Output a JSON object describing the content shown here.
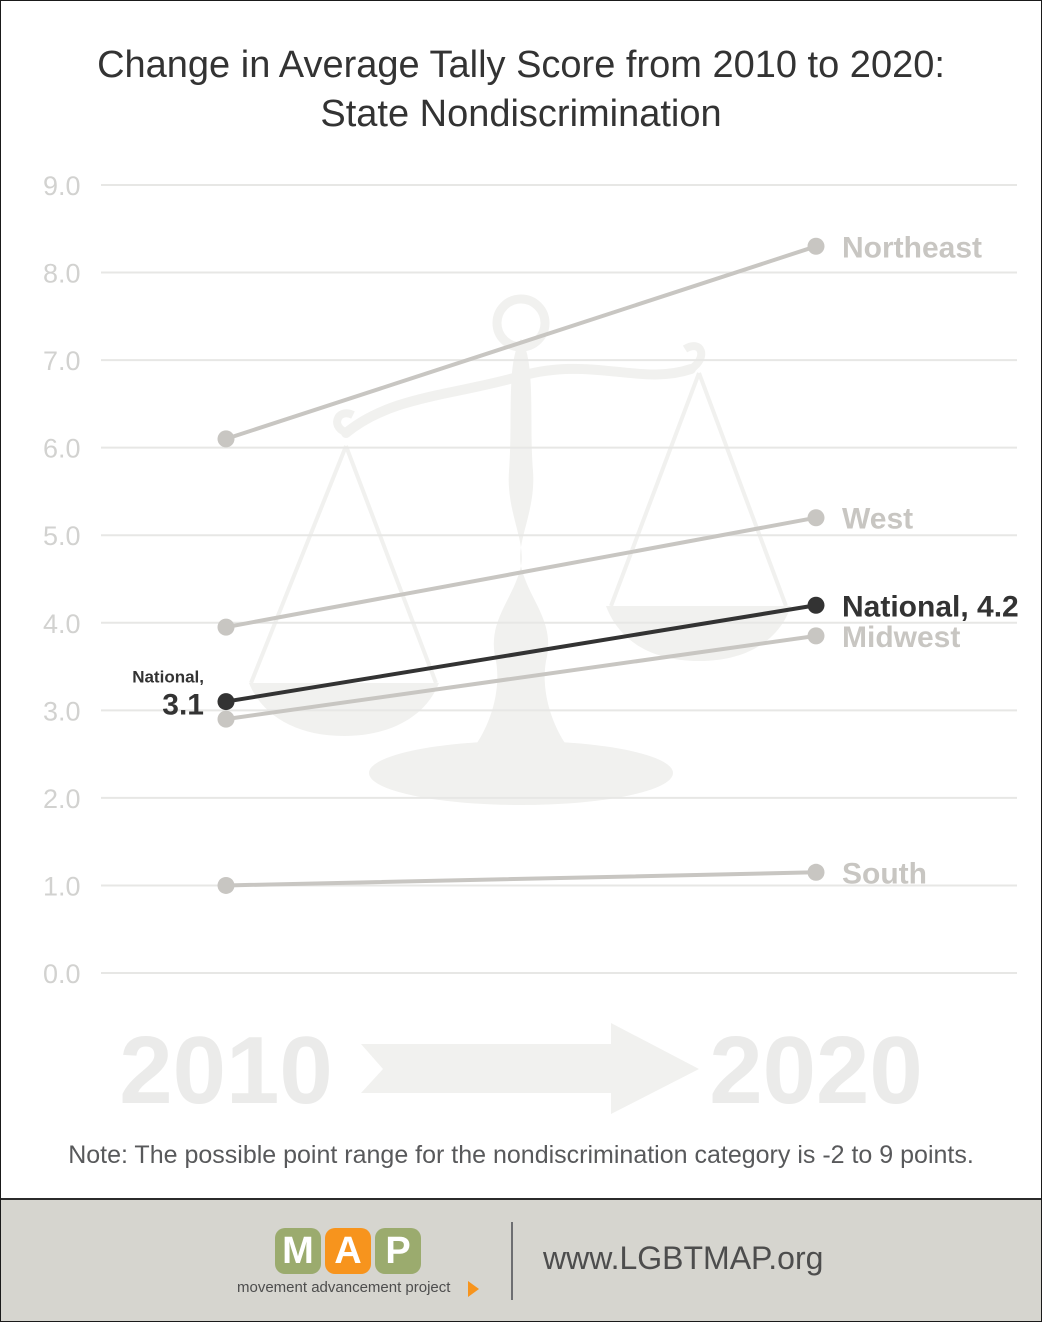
{
  "chart_data": {
    "type": "line",
    "title": [
      "Change in Average Tally Score from 2010 to 2020:",
      "State Nondiscrimination"
    ],
    "x": [
      "2010",
      "2020"
    ],
    "yticks": [
      "9.0",
      "8.0",
      "7.0",
      "6.0",
      "5.0",
      "4.0",
      "3.0",
      "2.0",
      "1.0",
      "0.0"
    ],
    "ylim": [
      0,
      9
    ],
    "grid": true,
    "series": [
      {
        "name": "Northeast",
        "values": [
          6.1,
          8.3
        ],
        "color": "#c8c6c2",
        "label": "Northeast"
      },
      {
        "name": "West",
        "values": [
          3.95,
          5.2
        ],
        "color": "#c8c6c2",
        "label": "West"
      },
      {
        "name": "Midwest",
        "values": [
          2.9,
          3.85
        ],
        "color": "#c8c6c2",
        "label": "Midwest"
      },
      {
        "name": "South",
        "values": [
          1.0,
          1.15
        ],
        "color": "#c8c6c2",
        "label": "South"
      },
      {
        "name": "National",
        "values": [
          3.1,
          4.2
        ],
        "color": "#333333",
        "label": "National, 4.2",
        "start_label_top": "National,",
        "start_label_value": "3.1"
      }
    ],
    "watermark_years": [
      "2010",
      "2020"
    ],
    "note": "Note: The possible point range for the nondiscrimination category is -2 to 9 points."
  },
  "footer": {
    "logo_letters": [
      "M",
      "A",
      "P"
    ],
    "logo_colors": [
      "#9bab6e",
      "#f7941d",
      "#9bab6e"
    ],
    "tagline": "movement advancement project",
    "url": "www.LGBTMAP.org"
  }
}
